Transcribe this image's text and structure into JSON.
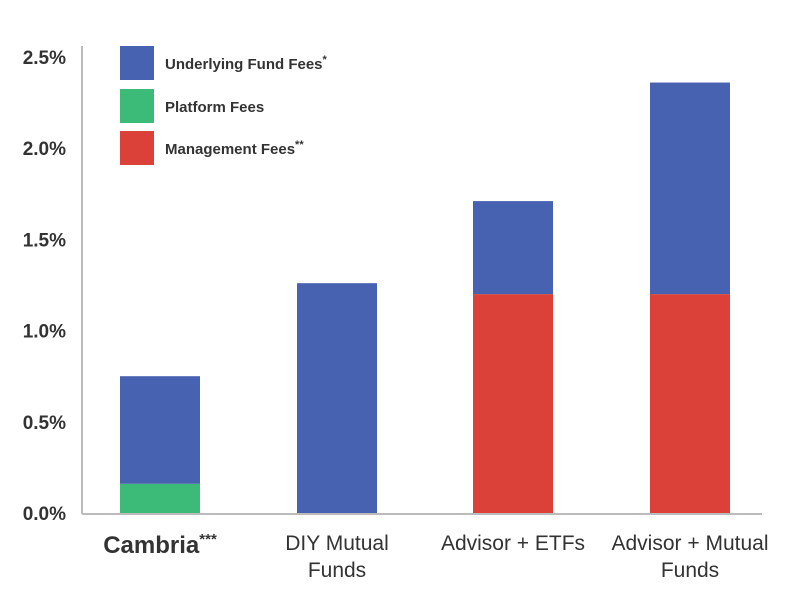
{
  "chart_data": {
    "type": "bar",
    "stacked": true,
    "categories": [
      "Cambria",
      "DIY Mutual Funds",
      "Advisor + ETFs",
      "Advisor + Mutual Funds"
    ],
    "category_lines": [
      [
        "Cambria"
      ],
      [
        "DIY Mutual",
        "Funds"
      ],
      [
        "Advisor + ETFs"
      ],
      [
        "Advisor + Mutual",
        "Funds"
      ]
    ],
    "category_markers": [
      "***",
      "",
      "",
      ""
    ],
    "series": [
      {
        "name": "Platform Fees",
        "marker": "",
        "color": "#3cba78",
        "values": [
          0.16,
          0,
          0,
          0
        ]
      },
      {
        "name": "Management Fees",
        "marker": "**",
        "color": "#db4139",
        "values": [
          0,
          0,
          1.2,
          1.2
        ]
      },
      {
        "name": "Underlying Fund Fees",
        "marker": "*",
        "color": "#4762b0",
        "values": [
          0.59,
          1.26,
          0.51,
          1.16
        ]
      }
    ],
    "legend_order": [
      2,
      0,
      1
    ],
    "legend_position": "top-left",
    "ylim": [
      0,
      2.5
    ],
    "yticks": [
      0,
      0.5,
      1.0,
      1.5,
      2.0,
      2.5
    ],
    "ytick_labels": [
      "0.0%",
      "0.5%",
      "1.0%",
      "1.5%",
      "2.0%",
      "2.5%"
    ],
    "title": "",
    "xlabel": "",
    "ylabel": "",
    "grid": false
  }
}
